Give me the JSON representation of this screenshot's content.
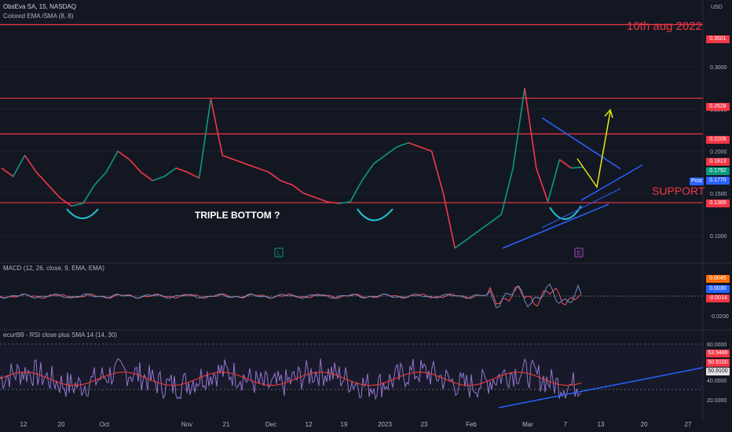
{
  "header": {
    "symbol_line": "ObsEva SA, 15, NASDAQ",
    "indicator_line": "Colored EMA /SMA (8, 8)",
    "currency": "USD"
  },
  "annotations": {
    "date_note": "10th aug 2022",
    "support": "SUPPORT",
    "pattern": "TRIPLE BOTTOM ?",
    "marker_l": "L",
    "marker_e": "E",
    "post": "Post"
  },
  "colors": {
    "background": "#131722",
    "resistance_line": "#f23645",
    "trend_line": "#2962ff",
    "cyan_curve": "#22c3d6",
    "yellow_arrow": "#e6e619",
    "candles_up": "#089981",
    "candles_down": "#f23645"
  },
  "chart_data": [
    {
      "type": "line",
      "name": "price",
      "x_ticks": [
        "12",
        "20",
        "Oct",
        "Nov",
        "21",
        "Dec",
        "12",
        "19",
        "2023",
        "23",
        "Feb",
        "Mar",
        "7",
        "13",
        "20",
        "27"
      ],
      "y_ticks": [
        "0.3000",
        "0.2500",
        "0.2000",
        "0.1500",
        "0.1000"
      ],
      "ylim": [
        0.07,
        0.37
      ],
      "series": [
        {
          "values": [
            0.18,
            0.17,
            0.195,
            0.175,
            0.16,
            0.145,
            0.135,
            0.138,
            0.16,
            0.175,
            0.2,
            0.19,
            0.175,
            0.165,
            0.17,
            0.18,
            0.175,
            0.168,
            0.262,
            0.195,
            0.19,
            0.185,
            0.18,
            0.175,
            0.165,
            0.16,
            0.15,
            0.145,
            0.14,
            0.138,
            0.14,
            0.165,
            0.185,
            0.195,
            0.205,
            0.21,
            0.205,
            0.2,
            0.15,
            0.085,
            0.095,
            0.105,
            0.115,
            0.125,
            0.18,
            0.275,
            0.18,
            0.14,
            0.19,
            0.18,
            0.181
          ]
        }
      ],
      "levels": [
        {
          "label": "0.3501",
          "value": 0.3501
        },
        {
          "label": "0.2628",
          "value": 0.2628
        },
        {
          "label": "0.2205",
          "value": 0.2205
        },
        {
          "label": "0.1389",
          "value": 0.1389
        }
      ],
      "price_labels": [
        {
          "label": "0.1813",
          "value": 0.1813,
          "color": "#f23645"
        },
        {
          "label": "0.1792",
          "value": 0.1792,
          "color": "#089981"
        },
        {
          "label": "0.1770",
          "value": 0.177,
          "color": "#2962ff"
        }
      ]
    },
    {
      "type": "line",
      "name": "MACD (12, 26, close, 9, EMA, EMA)",
      "y_ticks": [
        "-0.0200"
      ],
      "price_labels": [
        {
          "label": "0.0045",
          "color": "#ff6d00"
        },
        {
          "label": "0.0030",
          "color": "#2962ff"
        },
        {
          "label": "-0.0014",
          "color": "#f23645"
        }
      ]
    },
    {
      "type": "line",
      "name": "ecurt99 - RSI close plus SMA 14 (14, 30)",
      "y_ticks": [
        "80.0000",
        "40.0000",
        "20.0000"
      ],
      "ylim": [
        15,
        90
      ],
      "price_labels": [
        {
          "label": "53.9486",
          "color": "#f23645"
        },
        {
          "label": "50.9100",
          "color": "#f23645"
        },
        {
          "label": "50.9100",
          "color": "#e0e0e0"
        }
      ]
    }
  ]
}
